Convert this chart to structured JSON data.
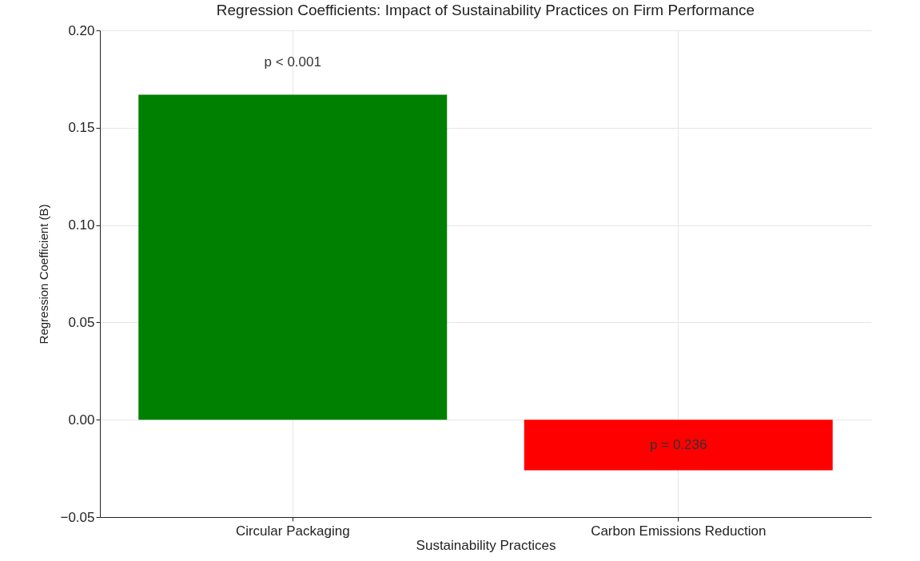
{
  "chart_data": {
    "type": "bar",
    "title": "Regression Coefficients: Impact of Sustainability Practices on Firm Performance",
    "xlabel": "Sustainability Practices",
    "ylabel": "Regression Coefficient (B)",
    "categories": [
      "Circular Packaging",
      "Carbon Emissions Reduction"
    ],
    "values": [
      0.167,
      -0.026
    ],
    "colors": [
      "#008000",
      "#ff0000"
    ],
    "ylim": [
      -0.05,
      0.2
    ],
    "yticks": [
      {
        "value": -0.05,
        "label": "−0.05"
      },
      {
        "value": 0,
        "label": "0.00"
      },
      {
        "value": 0.05,
        "label": "0.05"
      },
      {
        "value": 0.1,
        "label": "0.10"
      },
      {
        "value": 0.15,
        "label": "0.15"
      },
      {
        "value": 0.2,
        "label": "0.20"
      }
    ],
    "grid": true,
    "annotations": [
      "p < 0.001",
      "p = 0.236"
    ]
  }
}
